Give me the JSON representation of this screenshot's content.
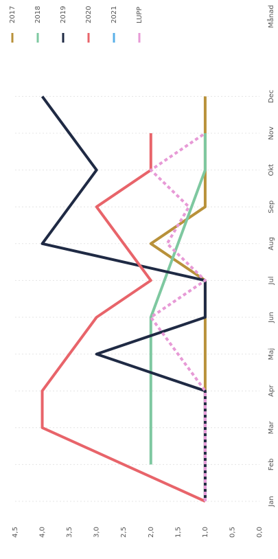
{
  "chart_data": {
    "type": "line",
    "categories": [
      "Jan",
      "Feb",
      "Mar",
      "Apr",
      "Maj",
      "Jun",
      "Jul",
      "Aug",
      "Sep",
      "Okt",
      "Nov",
      "Dec"
    ],
    "x_label": "Månad",
    "series": [
      {
        "name": "2017",
        "color": "#b8913a",
        "values": [
          1,
          1,
          1,
          1,
          1,
          1,
          1,
          2,
          1,
          1,
          1,
          1
        ]
      },
      {
        "name": "2018",
        "color": "#7ec8a0",
        "values": [
          null,
          2,
          2,
          2,
          2,
          2,
          1.75,
          1.5,
          1.25,
          1,
          1,
          null
        ]
      },
      {
        "name": "2019",
        "color": "#1f2a44",
        "values": [
          1,
          1,
          1,
          1,
          3,
          1,
          1,
          4,
          3.5,
          3,
          3.5,
          4
        ]
      },
      {
        "name": "2020",
        "color": "#e8646a",
        "values": [
          1,
          2.5,
          4,
          4,
          3.5,
          3,
          2,
          2.5,
          3,
          2,
          2,
          null
        ]
      },
      {
        "name": "2021",
        "color": "#5ab0e8",
        "dashed": true,
        "values": [
          1,
          1,
          1,
          1,
          null,
          null,
          null,
          null,
          null,
          null,
          null,
          null
        ]
      },
      {
        "name": "LUPP",
        "color": "#e79ad6",
        "dashed": true,
        "values": [
          1,
          1,
          1,
          1,
          1.5,
          2,
          1,
          1.7,
          1.3,
          2,
          1,
          null
        ]
      }
    ],
    "ylim": [
      0,
      4.5
    ],
    "yticks": [
      {
        "value": 0,
        "label": "0,0"
      },
      {
        "value": 0.5,
        "label": "0,5"
      },
      {
        "value": 1,
        "label": "1,0"
      },
      {
        "value": 1.5,
        "label": "1,5"
      },
      {
        "value": 2,
        "label": "2,0"
      },
      {
        "value": 2.5,
        "label": "2,5"
      },
      {
        "value": 3,
        "label": "3,0"
      },
      {
        "value": 3.5,
        "label": "3,5"
      },
      {
        "value": 4,
        "label": "4,0"
      },
      {
        "value": 4.5,
        "label": "4,5"
      }
    ],
    "grid": true,
    "legend": "right"
  }
}
